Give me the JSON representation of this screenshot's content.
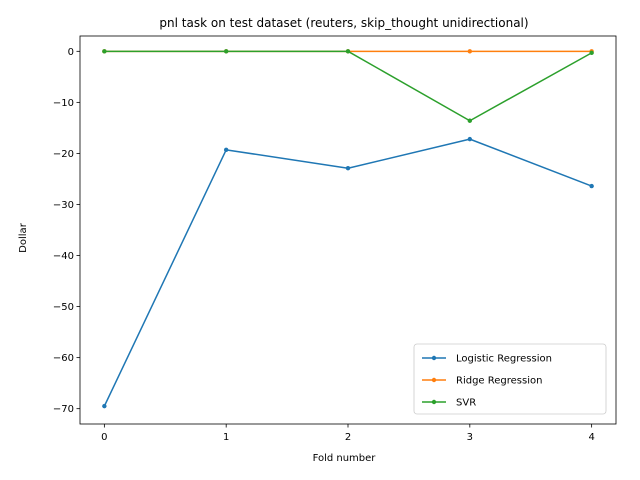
{
  "chart_data": {
    "type": "line",
    "title": "pnl task on test dataset (reuters, skip_thought unidirectional)",
    "xlabel": "Fold number",
    "ylabel": "Dollar",
    "x": [
      0,
      1,
      2,
      3,
      4
    ],
    "xticks": [
      "0",
      "1",
      "2",
      "3",
      "4"
    ],
    "yticks": [
      0,
      -10,
      -20,
      -30,
      -40,
      -50,
      -60,
      -70
    ],
    "ytick_labels": [
      "0",
      "−10",
      "−20",
      "−30",
      "−40",
      "−50",
      "−60",
      "−70"
    ],
    "xlim": [
      -0.2,
      4.2
    ],
    "ylim": [
      -73,
      3
    ],
    "grid": false,
    "legend_position": "lower right",
    "series": [
      {
        "name": "Logistic Regression",
        "color": "#1f77b4",
        "values": [
          -69.5,
          -19.3,
          -22.9,
          -17.2,
          -26.4
        ]
      },
      {
        "name": "Ridge Regression",
        "color": "#ff7f0e",
        "values": [
          0,
          0,
          0,
          0,
          0
        ]
      },
      {
        "name": "SVR",
        "color": "#2ca02c",
        "values": [
          0,
          0,
          0,
          -13.6,
          -0.3
        ]
      }
    ]
  }
}
